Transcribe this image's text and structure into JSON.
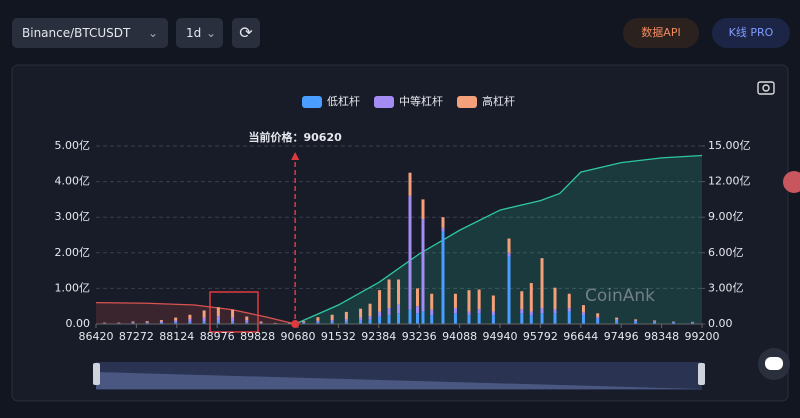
{
  "toolbar": {
    "symbol": "Binance/BTCUSDT",
    "interval": "1d",
    "api_button": "数据API",
    "pro_button": "K线 PRO"
  },
  "watermark": "CoinAnk",
  "chart_data": {
    "type": "bar",
    "stacked": true,
    "grid": true,
    "price_label": "当前价格：",
    "current_price": 90620,
    "x": [
      86600,
      86900,
      87200,
      87500,
      87800,
      88100,
      88400,
      88700,
      89000,
      89300,
      89600,
      89900,
      90200,
      90500,
      90800,
      91100,
      91400,
      91700,
      92000,
      92200,
      92400,
      92600,
      92800,
      93042,
      93200,
      93316,
      93500,
      93738,
      94000,
      94286,
      94500,
      94800,
      95130,
      95400,
      95600,
      95826,
      96100,
      96400,
      96700,
      97000,
      97400,
      97800,
      98200,
      98600,
      99000
    ],
    "series": [
      {
        "name": "低杠杆",
        "color": "#4a9eff",
        "values": [
          0.02,
          0.02,
          0.03,
          0.03,
          0.04,
          0.05,
          0.06,
          0.08,
          0.1,
          0.08,
          0.05,
          0.02,
          0.01,
          0.01,
          0.03,
          0.05,
          0.06,
          0.08,
          0.1,
          0.12,
          0.2,
          0.25,
          0.3,
          0.4,
          0.3,
          0.35,
          0.25,
          2.6,
          0.3,
          0.25,
          0.3,
          0.25,
          1.9,
          0.3,
          0.25,
          0.3,
          0.3,
          0.35,
          0.25,
          0.15,
          0.1,
          0.08,
          0.06,
          0.05,
          0.04
        ]
      },
      {
        "name": "中等杠杆",
        "color": "#a48cf5",
        "values": [
          0.01,
          0.01,
          0.02,
          0.02,
          0.03,
          0.05,
          0.08,
          0.1,
          0.12,
          0.1,
          0.06,
          0.02,
          0.01,
          0.01,
          0.02,
          0.04,
          0.05,
          0.06,
          0.08,
          0.1,
          0.15,
          0.2,
          0.25,
          3.2,
          0.2,
          2.6,
          0.15,
          0.1,
          0.15,
          0.1,
          0.12,
          0.1,
          0.1,
          0.12,
          0.1,
          0.15,
          0.12,
          0.1,
          0.08,
          0.05,
          0.03,
          0.02,
          0.02,
          0.01,
          0.01
        ]
      },
      {
        "name": "高杠杆",
        "color": "#f4a07a",
        "values": [
          0.01,
          0.01,
          0.02,
          0.03,
          0.04,
          0.08,
          0.12,
          0.2,
          0.25,
          0.22,
          0.1,
          0.03,
          0.01,
          0.01,
          0.03,
          0.1,
          0.15,
          0.2,
          0.25,
          0.35,
          0.6,
          0.8,
          0.7,
          0.65,
          0.5,
          0.55,
          0.45,
          0.3,
          0.4,
          0.6,
          0.55,
          0.45,
          0.4,
          0.5,
          0.8,
          1.4,
          0.6,
          0.4,
          0.2,
          0.1,
          0.05,
          0.03,
          0.02,
          0.01,
          0.01
        ]
      }
    ],
    "areas": [
      {
        "color": "#d9534f",
        "axis": "y2",
        "x": [
          86420,
          87500,
          88500,
          89300,
          90000,
          90620
        ],
        "values": [
          1.8,
          1.75,
          1.6,
          1.2,
          0.6,
          0
        ]
      },
      {
        "color": "#2ec8a0",
        "axis": "y2",
        "x": [
          90620,
          91532,
          92384,
          93236,
          94088,
          94940,
          95792,
          96200,
          96644,
          97496,
          98348,
          99200
        ],
        "values": [
          0,
          1.6,
          3.5,
          5.9,
          7.9,
          9.6,
          10.4,
          11.0,
          12.8,
          13.6,
          14.0,
          14.2
        ]
      }
    ],
    "xlim": [
      86420,
      99200
    ],
    "xticks": [
      86420,
      87272,
      88124,
      88976,
      89828,
      90680,
      91532,
      92384,
      93236,
      94088,
      94940,
      95792,
      96644,
      97496,
      98348,
      99200
    ],
    "ylim": [
      0,
      5
    ],
    "yticks": [
      {
        "value": 0,
        "label": "0.00"
      },
      {
        "value": 1,
        "label": "1.00亿"
      },
      {
        "value": 2,
        "label": "2.00亿"
      },
      {
        "value": 3,
        "label": "3.00亿"
      },
      {
        "value": 4,
        "label": "4.00亿"
      },
      {
        "value": 5,
        "label": "5.00亿"
      }
    ],
    "y2lim": [
      0,
      15
    ],
    "y2ticks": [
      {
        "value": 0,
        "label": "0.00"
      },
      {
        "value": 3,
        "label": "3.00亿"
      },
      {
        "value": 6,
        "label": "6.00亿"
      },
      {
        "value": 9,
        "label": "9.00亿"
      },
      {
        "value": 12,
        "label": "12.00亿"
      },
      {
        "value": 15,
        "label": "15.00亿"
      }
    ]
  }
}
